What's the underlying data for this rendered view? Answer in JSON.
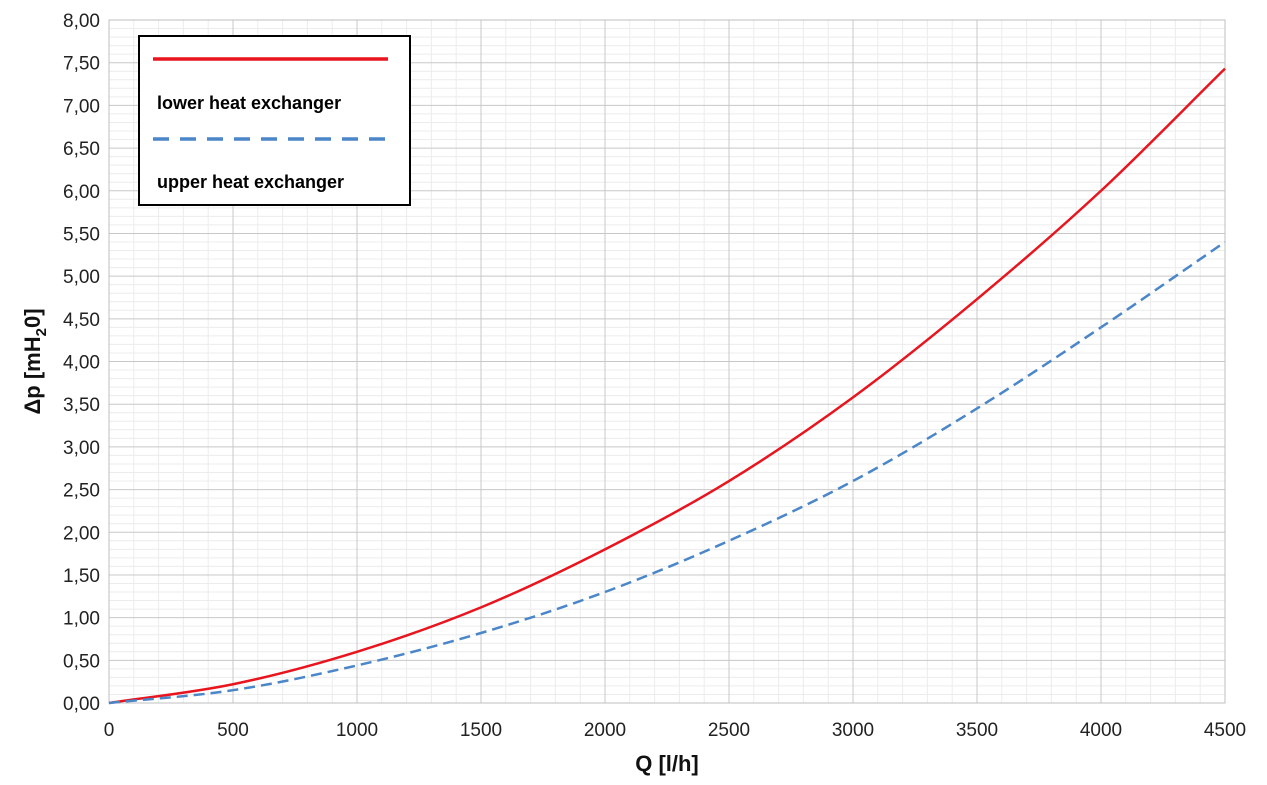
{
  "chart_data": {
    "type": "line",
    "xlabel": "Q [l/h]",
    "ylabel": {
      "prefix": "Δp [mH",
      "sub": "2",
      "suffix": "0]"
    },
    "xlim": [
      0,
      4500
    ],
    "ylim": [
      0,
      8
    ],
    "x_ticks": [
      0,
      500,
      1000,
      1500,
      2000,
      2500,
      3000,
      3500,
      4000,
      4500
    ],
    "x_tick_labels": [
      "0",
      "500",
      "1000",
      "1500",
      "2000",
      "2500",
      "3000",
      "3500",
      "4000",
      "4500"
    ],
    "y_ticks": [
      0,
      0.5,
      1,
      1.5,
      2,
      2.5,
      3,
      3.5,
      4,
      4.5,
      5,
      5.5,
      6,
      6.5,
      7,
      7.5,
      8
    ],
    "y_tick_labels": [
      "0,00",
      "0,50",
      "1,00",
      "1,50",
      "2,00",
      "2,50",
      "3,00",
      "3,50",
      "4,00",
      "4,50",
      "5,00",
      "5,50",
      "6,00",
      "6,50",
      "7,00",
      "7,50",
      "8,00"
    ],
    "grid": true,
    "legend_position": "top-left",
    "series": [
      {
        "name": "lower heat exchanger",
        "color": "#e8141e",
        "style": "solid",
        "x": [
          0,
          500,
          1000,
          1500,
          2000,
          2500,
          3000,
          3500,
          4000,
          4500
        ],
        "y": [
          0,
          0.22,
          0.6,
          1.12,
          1.8,
          2.6,
          3.58,
          4.73,
          6.0,
          7.43
        ]
      },
      {
        "name": "upper heat exchanger",
        "color": "#4a86c8",
        "style": "dashed",
        "x": [
          0,
          500,
          1000,
          1500,
          2000,
          2500,
          3000,
          3500,
          4000,
          4500
        ],
        "y": [
          0,
          0.15,
          0.44,
          0.82,
          1.3,
          1.9,
          2.6,
          3.45,
          4.4,
          5.4
        ]
      }
    ]
  }
}
